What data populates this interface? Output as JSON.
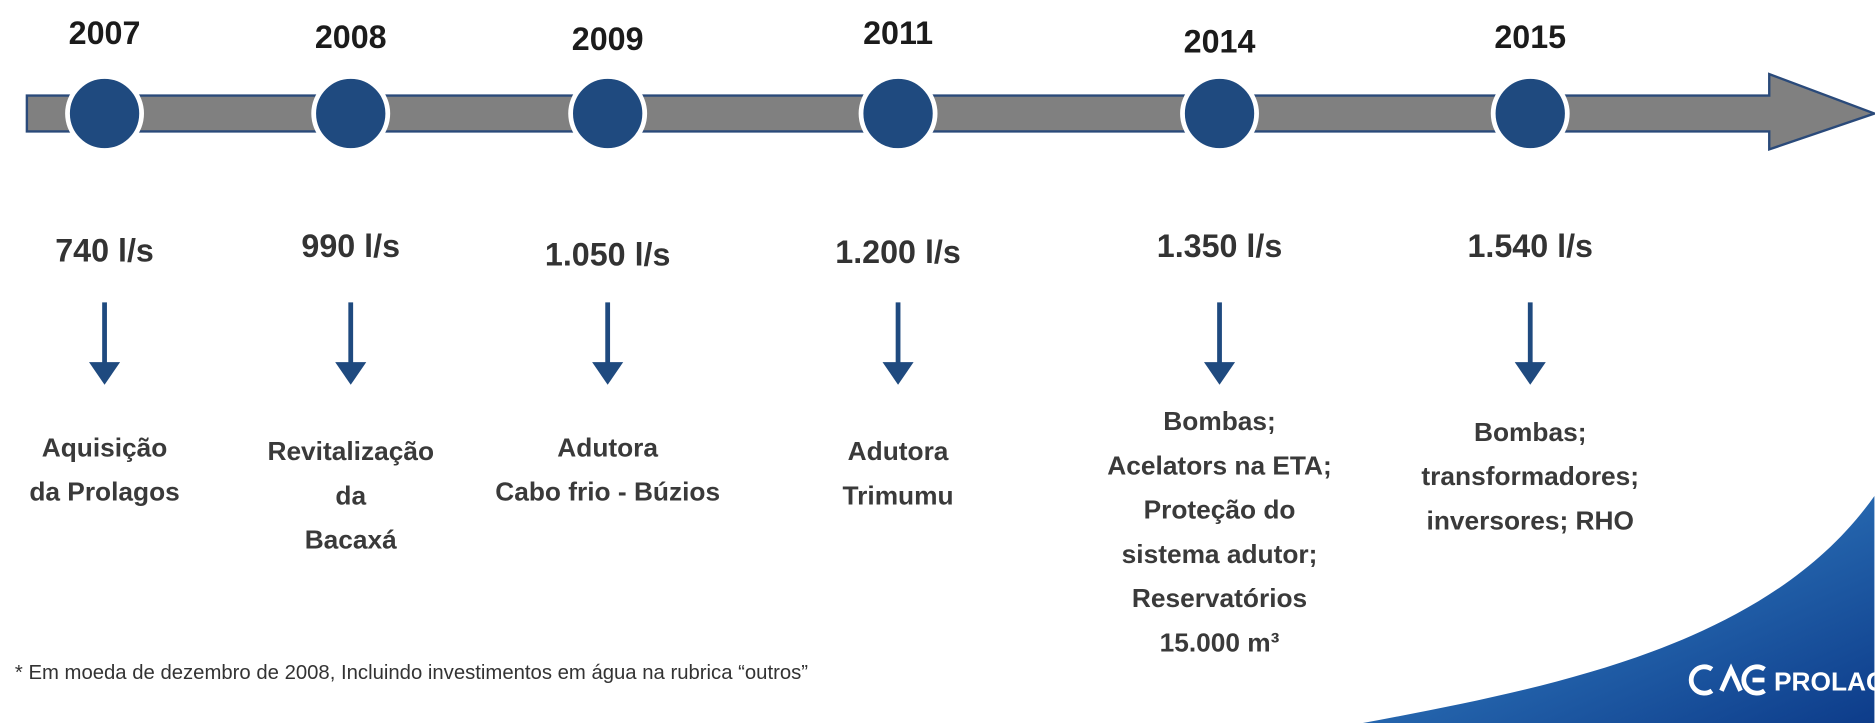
{
  "timeline": {
    "events": [
      {
        "year": "2007",
        "flow": "740 l/s",
        "description": [
          "Aquisição",
          "da Prolagos"
        ]
      },
      {
        "year": "2008",
        "flow": "990 l/s",
        "description": [
          "Revitalização",
          "da",
          "Bacaxá"
        ]
      },
      {
        "year": "2009",
        "flow": "1.050 l/s",
        "description": [
          "Adutora",
          "Cabo frio - Búzios"
        ]
      },
      {
        "year": "2011",
        "flow": "1.200 l/s",
        "description": [
          "Adutora",
          "Trimumu"
        ]
      },
      {
        "year": "2014",
        "flow": "1.350 l/s",
        "description": [
          "Bombas;",
          "Acelators na ETA;",
          "Proteção do",
          "sistema adutor;",
          "Reservatórios",
          "15.000 m³"
        ]
      },
      {
        "year": "2015",
        "flow": "1.540 l/s",
        "description": [
          "Bombas;",
          "transformadores;",
          "inversores; RHO"
        ]
      }
    ]
  },
  "footnote": "* Em moeda de dezembro de 2008, Incluindo investimentos em água na rubrica “outros”",
  "logo": {
    "text": "PROLAGOS"
  }
}
